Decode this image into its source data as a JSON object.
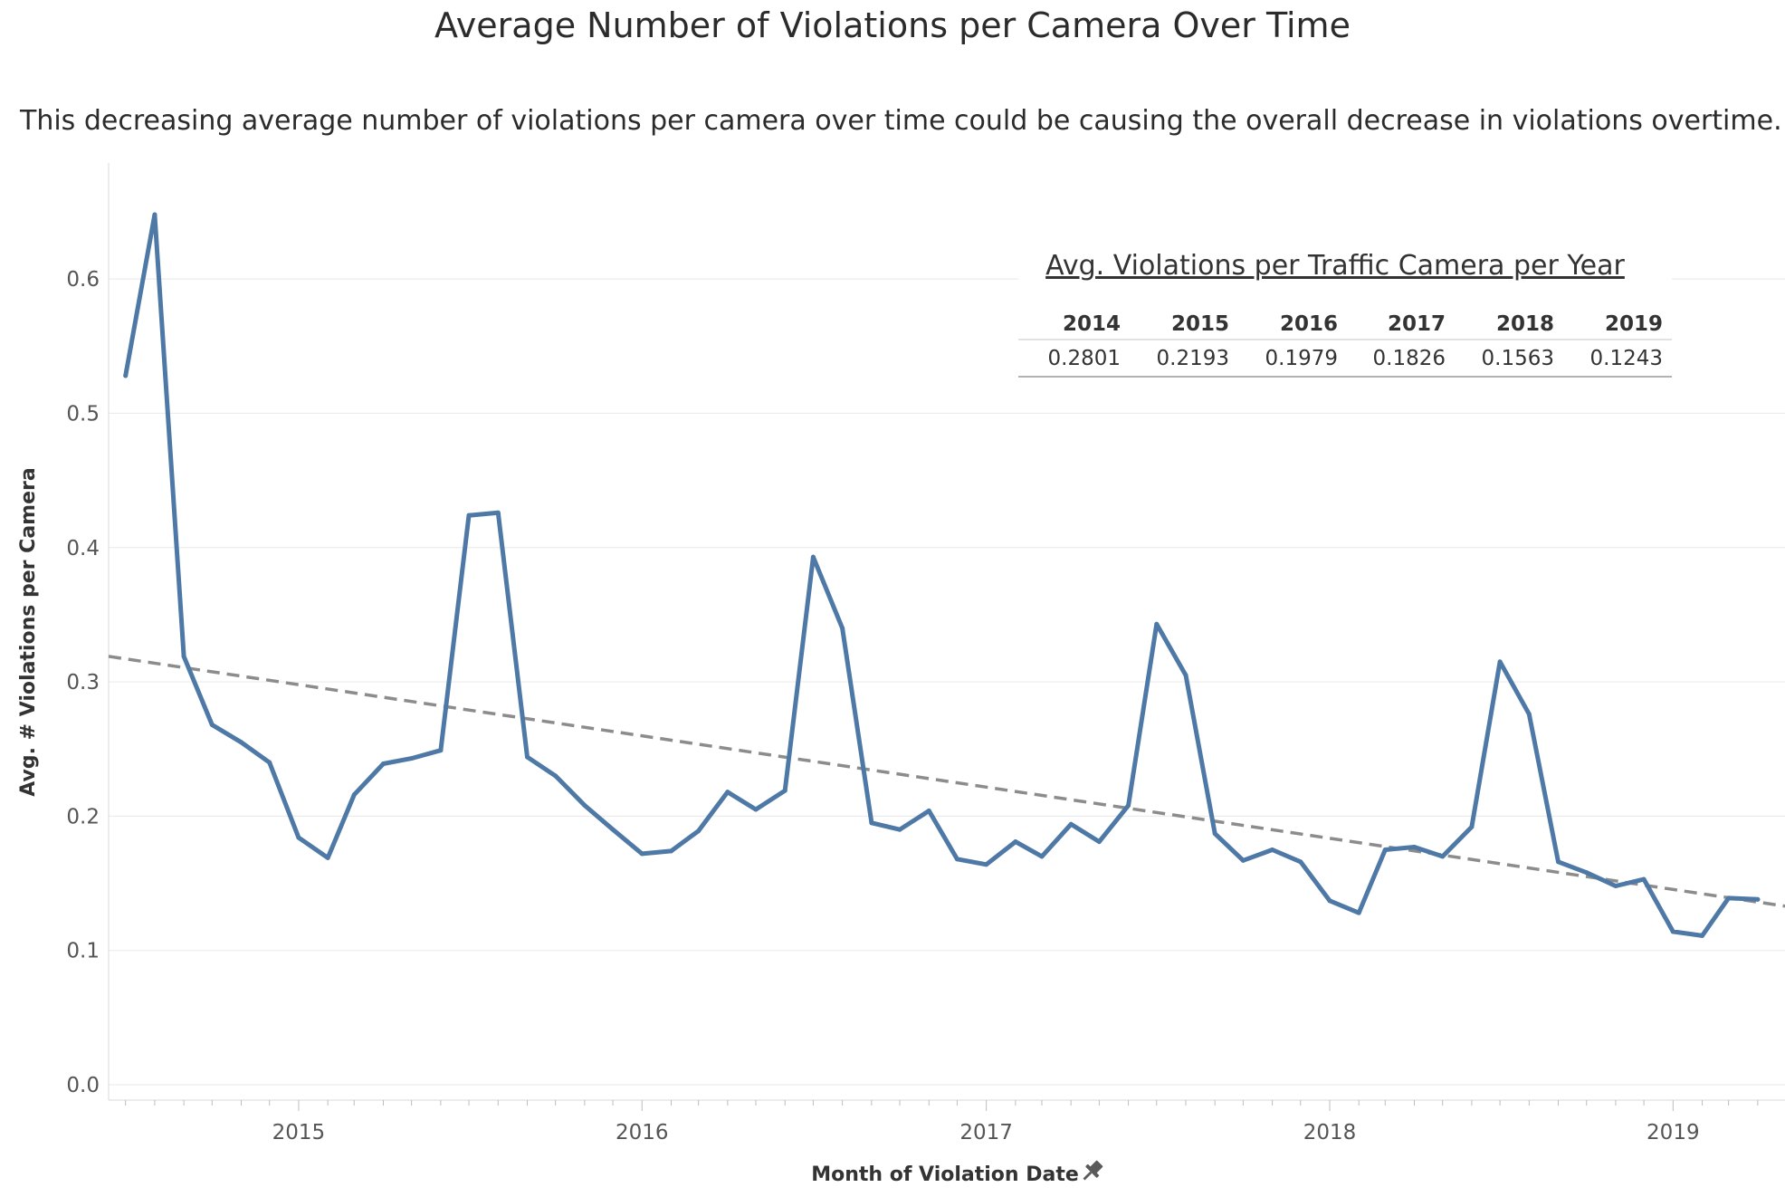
{
  "chart_data": {
    "type": "line",
    "title": "Average Number of Violations per Camera Over Time",
    "subtitle": "This decreasing average number of violations per camera over time could be causing the overall decrease in violations overtime.",
    "xlabel": "Month of Violation Date",
    "ylabel": "Avg. # Violations per Camera",
    "ylim": [
      0,
      0.65
    ],
    "xlim": [
      "2014-06-13",
      "2019-04-30"
    ],
    "y_ticks": [
      "0.0",
      "0.1",
      "0.2",
      "0.3",
      "0.4",
      "0.5",
      "0.6"
    ],
    "x_ticks": [
      "2015",
      "2016",
      "2017",
      "2018",
      "2019"
    ],
    "grid": true,
    "series_color": "#4e79a7",
    "trend_color": "#8c8c8c",
    "x": [
      "2014-07",
      "2014-08",
      "2014-09",
      "2014-10",
      "2014-11",
      "2014-12",
      "2015-01",
      "2015-02",
      "2015-03",
      "2015-04",
      "2015-05",
      "2015-06",
      "2015-07",
      "2015-08",
      "2015-09",
      "2015-10",
      "2015-11",
      "2015-12",
      "2016-01",
      "2016-02",
      "2016-03",
      "2016-04",
      "2016-05",
      "2016-06",
      "2016-07",
      "2016-08",
      "2016-09",
      "2016-10",
      "2016-11",
      "2016-12",
      "2017-01",
      "2017-02",
      "2017-03",
      "2017-04",
      "2017-05",
      "2017-06",
      "2017-07",
      "2017-08",
      "2017-09",
      "2017-10",
      "2017-11",
      "2017-12",
      "2018-01",
      "2018-02",
      "2018-03",
      "2018-04",
      "2018-05",
      "2018-06",
      "2018-07",
      "2018-08",
      "2018-09",
      "2018-10",
      "2018-11",
      "2018-12",
      "2019-01",
      "2019-02",
      "2019-03",
      "2019-04"
    ],
    "series": [
      {
        "values": [
          0.528,
          0.648,
          0.319,
          0.268,
          0.255,
          0.24,
          0.184,
          0.169,
          0.216,
          0.239,
          0.243,
          0.249,
          0.424,
          0.426,
          0.244,
          0.23,
          0.208,
          0.19,
          0.172,
          0.174,
          0.189,
          0.218,
          0.205,
          0.219,
          0.393,
          0.34,
          0.195,
          0.19,
          0.204,
          0.168,
          0.164,
          0.181,
          0.17,
          0.194,
          0.181,
          0.208,
          0.343,
          0.305,
          0.187,
          0.167,
          0.175,
          0.166,
          0.137,
          0.128,
          0.175,
          0.177,
          0.17,
          0.192,
          0.315,
          0.276,
          0.166,
          0.158,
          0.148,
          0.153,
          0.114,
          0.111,
          0.139,
          0.138
        ]
      }
    ],
    "trend_line": {
      "type": "linear",
      "start": [
        "2014-06-13",
        0.319
      ],
      "end": [
        "2019-04-30",
        0.133
      ]
    },
    "yearly_table": {
      "title": "Avg. Violations per Traffic Camera per Year",
      "years": [
        "2014",
        "2015",
        "2016",
        "2017",
        "2018",
        "2019"
      ],
      "values": [
        "0.2801",
        "0.2193",
        "0.1979",
        "0.1826",
        "0.1563",
        "0.1243"
      ]
    }
  }
}
